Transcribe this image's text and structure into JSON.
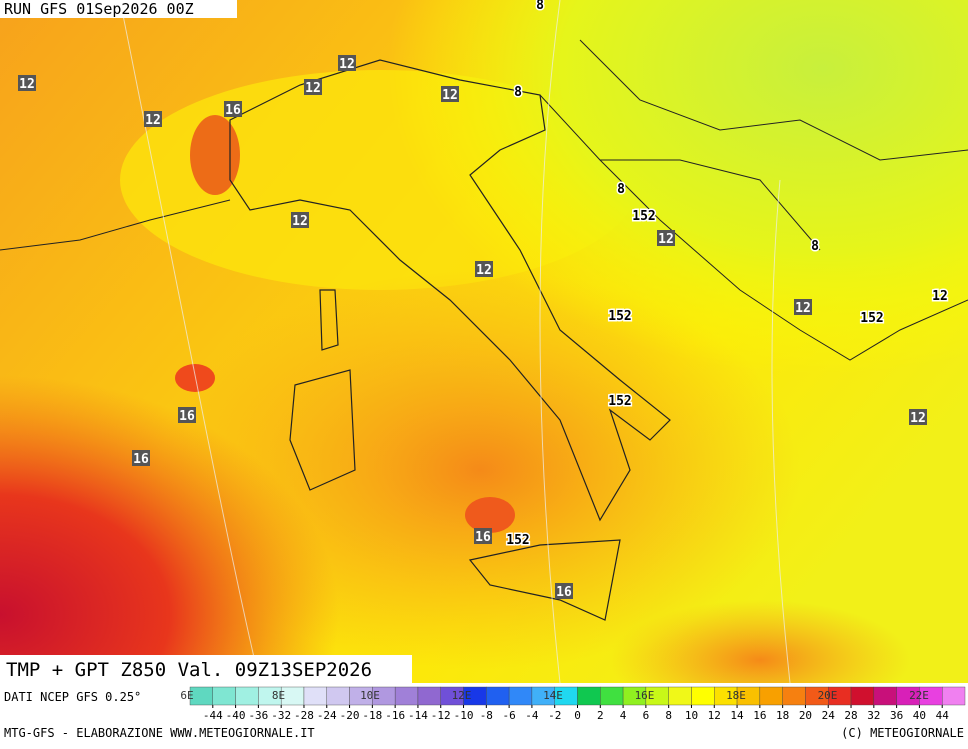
{
  "header": {
    "run": "RUN GFS 01Sep2026 00Z",
    "title": "TMP + GPT Z850 Val. 09Z13SEP2026"
  },
  "map": {
    "labels": [
      "12",
      "12",
      "12",
      "16",
      "12",
      "12",
      "8",
      "8",
      "152",
      "12",
      "8",
      "12",
      "12",
      "152",
      "8",
      "12",
      "152",
      "12",
      "16",
      "16",
      "12",
      "16",
      "152",
      "152",
      "16"
    ]
  },
  "legend": {
    "source": "DATI NCEP GFS 0.25°",
    "longitudes": [
      "6E",
      "8E",
      "10E",
      "12E",
      "14E",
      "16E",
      "18E",
      "20E",
      "22E"
    ],
    "ticks": [
      -44,
      -40,
      -36,
      -32,
      -28,
      -24,
      -20,
      -18,
      -16,
      -14,
      -12,
      -10,
      -8,
      -6,
      -4,
      -2,
      0,
      2,
      4,
      6,
      8,
      10,
      12,
      14,
      16,
      18,
      20,
      24,
      28,
      32,
      36,
      40,
      44
    ]
  },
  "footer": {
    "left": "MTG-GFS - ELABORAZIONE WWW.METEOGIORNALE.IT",
    "right": "(C) METEOGIORNALE"
  }
}
